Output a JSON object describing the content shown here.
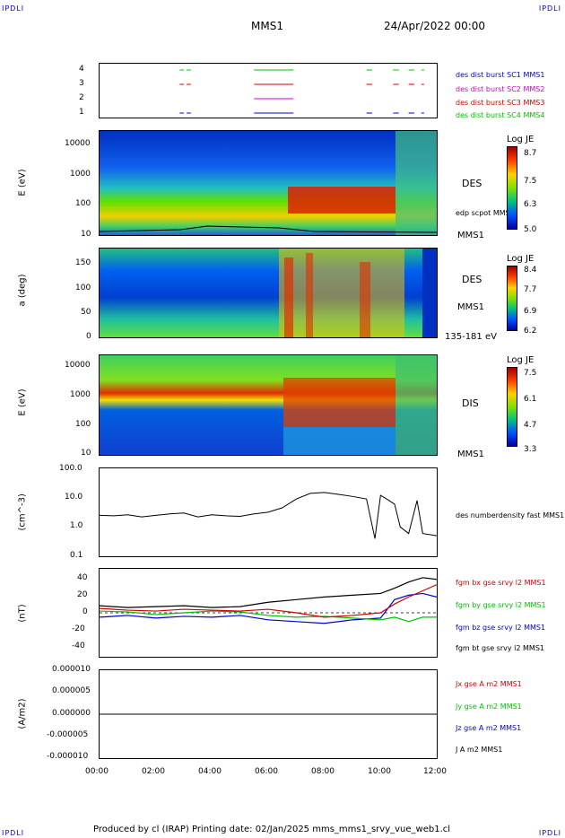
{
  "corners": {
    "tl": "IPDLI",
    "tr": "IPDLI",
    "bl": "IPDLI",
    "br": "IPDLI"
  },
  "header": {
    "spacecraft": "MMS1",
    "date": "24/Apr/2022 00:00"
  },
  "footer": {
    "text": "Produced by cl (IRAP)   Printing date: 02/Jan/2025   mms_mms1_srvy_vue_web1.cl"
  },
  "colors": {
    "red": "#d00000",
    "magenta": "#d000d0",
    "green": "#00c000",
    "blue": "#0000d0",
    "black": "#000000"
  },
  "chart_data": [
    {
      "type": "timeline",
      "name": "burst coverage",
      "yticks": [
        "4",
        "3",
        "2",
        "1"
      ],
      "legend": [
        {
          "label": "des dist burst SC1 MMS1",
          "color": "#0000d0"
        },
        {
          "label": "des dist burst SC2 MMS2",
          "color": "#d000d0"
        },
        {
          "label": "des dist burst SC3 MMS3",
          "color": "#d00000"
        },
        {
          "label": "des dist burst SC4 MMS4",
          "color": "#00c000"
        }
      ],
      "intervals_hours": [
        [
          2.85,
          3.0
        ],
        [
          3.1,
          3.25
        ],
        [
          5.5,
          6.9
        ],
        [
          9.5,
          9.7
        ],
        [
          10.45,
          10.65
        ],
        [
          11.0,
          11.2
        ],
        [
          11.45,
          11.55
        ]
      ]
    },
    {
      "type": "heatmap",
      "ylabel": "E (eV)",
      "yticks": [
        "10000",
        "1000",
        "100",
        "10"
      ],
      "instrument": "DES",
      "sc": "MMS1",
      "overlay": "edp scpot MMS1",
      "colorbar": {
        "title": "Log JE",
        "ticks": [
          "8.7",
          "7.5",
          "6.3",
          "5.0"
        ]
      }
    },
    {
      "type": "heatmap",
      "ylabel": "a (deg)",
      "yticks": [
        "150",
        "100",
        "50",
        "0"
      ],
      "instrument": "DES",
      "sc": "MMS1",
      "range": "135-181 eV",
      "colorbar": {
        "title": "Log JE",
        "ticks": [
          "8.4",
          "7.7",
          "6.9",
          "6.2"
        ]
      }
    },
    {
      "type": "heatmap",
      "ylabel": "E (eV)",
      "yticks": [
        "10000",
        "1000",
        "100",
        "10"
      ],
      "instrument": "DIS",
      "sc": "MMS1",
      "colorbar": {
        "title": "Log JE",
        "ticks": [
          "7.5",
          "6.1",
          "4.7",
          "3.3"
        ]
      }
    },
    {
      "type": "line",
      "ylabel": "(cm^-3)",
      "yticks": [
        "100.0",
        "10.0",
        "1.0",
        "0.1"
      ],
      "legend": [
        {
          "label": "des numberdensity fast MMS1",
          "color": "#000000"
        }
      ],
      "x": [
        0,
        0.5,
        1,
        1.5,
        2,
        2.5,
        3,
        3.5,
        4,
        4.5,
        5,
        5.5,
        6,
        6.5,
        7,
        7.5,
        8,
        8.5,
        9,
        9.5,
        9.8,
        10,
        10.3,
        10.5,
        10.7,
        11,
        11.3,
        11.5,
        12
      ],
      "y": [
        2.5,
        2.4,
        2.6,
        2.2,
        2.5,
        2.8,
        3,
        2.2,
        2.6,
        2.4,
        2.3,
        2.8,
        3.2,
        4.5,
        9,
        14,
        15,
        13,
        11,
        9,
        0.4,
        12,
        8,
        6,
        1,
        0.6,
        8,
        0.6,
        0.5
      ]
    },
    {
      "type": "line",
      "ylabel": "(nT)",
      "yticks": [
        "40",
        "20",
        "0",
        "-20",
        "-40"
      ],
      "legend": [
        {
          "label": "fgm bx gse srvy l2 MMS1",
          "color": "#d00000"
        },
        {
          "label": "fgm by gse srvy l2 MMS1",
          "color": "#00c000"
        },
        {
          "label": "fgm bz gse srvy l2 MMS1",
          "color": "#0000d0"
        },
        {
          "label": "fgm bt gse srvy l2 MMS1",
          "color": "#000000"
        }
      ],
      "x": [
        0,
        1,
        2,
        3,
        4,
        5,
        6,
        7,
        8,
        9,
        10,
        10.5,
        11,
        11.5,
        12
      ],
      "bx": [
        5,
        3,
        2,
        4,
        3,
        2,
        4,
        0,
        -5,
        -3,
        0,
        10,
        18,
        25,
        32
      ],
      "by": [
        2,
        1,
        -2,
        0,
        2,
        1,
        -3,
        -5,
        -4,
        -6,
        -8,
        -5,
        -10,
        -5,
        -5
      ],
      "bz": [
        -5,
        -3,
        -6,
        -4,
        -5,
        -3,
        -8,
        -10,
        -12,
        -8,
        -6,
        15,
        20,
        22,
        18
      ],
      "bt": [
        8,
        6,
        7,
        8,
        6,
        7,
        12,
        15,
        18,
        20,
        22,
        28,
        35,
        40,
        38
      ]
    },
    {
      "type": "line",
      "ylabel": "(A/m2)",
      "yticks": [
        "0.000010",
        "0.000005",
        "0.000000",
        "-0.000005",
        "-0.000010"
      ],
      "legend": [
        {
          "label": "Jx gse A m2 MMS1",
          "color": "#d00000"
        },
        {
          "label": "Jy gse A m2 MMS1",
          "color": "#00c000"
        },
        {
          "label": "Jz gse A m2 MMS1",
          "color": "#0000d0"
        },
        {
          "label": "J A m2 MMS1",
          "color": "#000000"
        }
      ],
      "x": [
        0,
        12
      ],
      "y": [
        0,
        0
      ]
    }
  ],
  "xaxis": {
    "ticks": [
      "00:00",
      "02:00",
      "04:00",
      "06:00",
      "08:00",
      "10:00",
      "12:00"
    ],
    "range_hours": [
      0,
      12
    ]
  }
}
